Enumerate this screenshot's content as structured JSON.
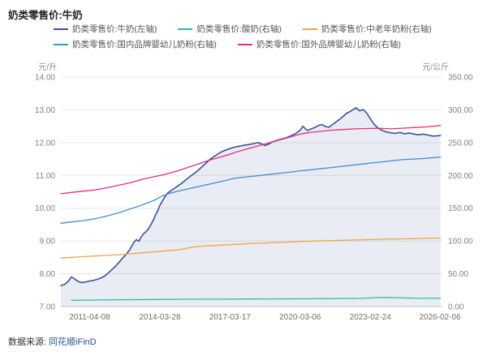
{
  "title": "奶类零售价:牛奶",
  "source": {
    "prefix": "数据来源:",
    "brand": "同花顺iFinD"
  },
  "chart_data": {
    "type": "line",
    "title": "奶类零售价:牛奶",
    "grid": "horizontal",
    "legend_position": "top",
    "legend_rows": [
      [
        0,
        1,
        2
      ],
      [
        3,
        4
      ]
    ],
    "x_domain": [
      2010.05,
      2026.2
    ],
    "x_ticks": [
      {
        "x": 2011.27,
        "label": "2011-04-08"
      },
      {
        "x": 2014.24,
        "label": "2014-03-28"
      },
      {
        "x": 2017.21,
        "label": "2017-03-17"
      },
      {
        "x": 2020.18,
        "label": "2020-03-06"
      },
      {
        "x": 2023.15,
        "label": "2023-02-24"
      },
      {
        "x": 2026.1,
        "label": "2026-02-06"
      }
    ],
    "left_axis": {
      "unit": "元/升",
      "min": 7,
      "max": 14,
      "ticks": [
        {
          "v": 7,
          "label": "7.00"
        },
        {
          "v": 8,
          "label": "8.00"
        },
        {
          "v": 9,
          "label": "9.00"
        },
        {
          "v": 10,
          "label": "10.00"
        },
        {
          "v": 11,
          "label": "11.00"
        },
        {
          "v": 12,
          "label": "12.00"
        },
        {
          "v": 13,
          "label": "13.00"
        },
        {
          "v": 14,
          "label": "14.00"
        }
      ]
    },
    "right_axis": {
      "unit": "元/公斤",
      "min": 0,
      "max": 350,
      "ticks": [
        {
          "v": 0,
          "label": "0.00"
        },
        {
          "v": 50,
          "label": "50.00"
        },
        {
          "v": 100,
          "label": "100.00"
        },
        {
          "v": 150,
          "label": "150.00"
        },
        {
          "v": 200,
          "label": "200.00"
        },
        {
          "v": 250,
          "label": "250.00"
        },
        {
          "v": 300,
          "label": "300.00"
        },
        {
          "v": 350,
          "label": "350.00"
        }
      ]
    },
    "colors": {
      "grid": "#e8e8e8",
      "axis_line": "#c9c9c9",
      "tick_label": "#808080"
    },
    "series": [
      {
        "name": "奶类零售价:牛奶(左轴)",
        "color": "#3b5396",
        "axis": "left",
        "width": 1.6,
        "fill": "rgba(76,100,164,0.12)",
        "points": [
          [
            2010.05,
            7.64
          ],
          [
            2010.2,
            7.67
          ],
          [
            2010.35,
            7.76
          ],
          [
            2010.5,
            7.9
          ],
          [
            2010.65,
            7.83
          ],
          [
            2010.8,
            7.76
          ],
          [
            2010.95,
            7.73
          ],
          [
            2011.1,
            7.75
          ],
          [
            2011.27,
            7.78
          ],
          [
            2011.45,
            7.8
          ],
          [
            2011.6,
            7.83
          ],
          [
            2011.75,
            7.87
          ],
          [
            2011.9,
            7.93
          ],
          [
            2012.05,
            8.02
          ],
          [
            2012.2,
            8.12
          ],
          [
            2012.35,
            8.22
          ],
          [
            2012.5,
            8.34
          ],
          [
            2012.65,
            8.47
          ],
          [
            2012.8,
            8.58
          ],
          [
            2012.95,
            8.72
          ],
          [
            2013.05,
            8.84
          ],
          [
            2013.15,
            8.97
          ],
          [
            2013.25,
            9.04
          ],
          [
            2013.35,
            8.99
          ],
          [
            2013.45,
            9.12
          ],
          [
            2013.55,
            9.22
          ],
          [
            2013.65,
            9.28
          ],
          [
            2013.75,
            9.36
          ],
          [
            2013.85,
            9.48
          ],
          [
            2013.95,
            9.62
          ],
          [
            2014.05,
            9.78
          ],
          [
            2014.15,
            9.92
          ],
          [
            2014.24,
            10.08
          ],
          [
            2014.35,
            10.22
          ],
          [
            2014.45,
            10.34
          ],
          [
            2014.55,
            10.45
          ],
          [
            2014.7,
            10.53
          ],
          [
            2014.85,
            10.6
          ],
          [
            2015.0,
            10.68
          ],
          [
            2015.15,
            10.75
          ],
          [
            2015.3,
            10.84
          ],
          [
            2015.45,
            10.93
          ],
          [
            2015.6,
            11.01
          ],
          [
            2015.75,
            11.09
          ],
          [
            2015.9,
            11.18
          ],
          [
            2016.05,
            11.28
          ],
          [
            2016.2,
            11.38
          ],
          [
            2016.35,
            11.48
          ],
          [
            2016.5,
            11.56
          ],
          [
            2016.65,
            11.63
          ],
          [
            2016.8,
            11.7
          ],
          [
            2016.95,
            11.75
          ],
          [
            2017.1,
            11.79
          ],
          [
            2017.21,
            11.82
          ],
          [
            2017.4,
            11.86
          ],
          [
            2017.6,
            11.89
          ],
          [
            2017.8,
            11.92
          ],
          [
            2018.0,
            11.94
          ],
          [
            2018.2,
            11.97
          ],
          [
            2018.4,
            12.0
          ],
          [
            2018.55,
            11.96
          ],
          [
            2018.7,
            11.91
          ],
          [
            2018.85,
            11.96
          ],
          [
            2019.0,
            12.02
          ],
          [
            2019.2,
            12.07
          ],
          [
            2019.4,
            12.11
          ],
          [
            2019.6,
            12.15
          ],
          [
            2019.8,
            12.21
          ],
          [
            2020.0,
            12.28
          ],
          [
            2020.18,
            12.38
          ],
          [
            2020.3,
            12.5
          ],
          [
            2020.4,
            12.42
          ],
          [
            2020.5,
            12.37
          ],
          [
            2020.65,
            12.42
          ],
          [
            2020.8,
            12.46
          ],
          [
            2020.95,
            12.52
          ],
          [
            2021.1,
            12.55
          ],
          [
            2021.25,
            12.49
          ],
          [
            2021.4,
            12.47
          ],
          [
            2021.55,
            12.55
          ],
          [
            2021.7,
            12.63
          ],
          [
            2021.85,
            12.71
          ],
          [
            2022.0,
            12.8
          ],
          [
            2022.15,
            12.9
          ],
          [
            2022.3,
            12.95
          ],
          [
            2022.45,
            13.02
          ],
          [
            2022.55,
            13.06
          ],
          [
            2022.7,
            12.97
          ],
          [
            2022.85,
            13.01
          ],
          [
            2023.0,
            12.9
          ],
          [
            2023.15,
            12.73
          ],
          [
            2023.3,
            12.57
          ],
          [
            2023.45,
            12.46
          ],
          [
            2023.6,
            12.39
          ],
          [
            2023.8,
            12.33
          ],
          [
            2024.0,
            12.3
          ],
          [
            2024.2,
            12.28
          ],
          [
            2024.4,
            12.31
          ],
          [
            2024.6,
            12.27
          ],
          [
            2024.8,
            12.29
          ],
          [
            2025.0,
            12.26
          ],
          [
            2025.2,
            12.24
          ],
          [
            2025.4,
            12.26
          ],
          [
            2025.6,
            12.23
          ],
          [
            2025.8,
            12.2
          ],
          [
            2026.0,
            12.21
          ],
          [
            2026.12,
            12.22
          ]
        ]
      },
      {
        "name": "奶类零售价:酸奶(右轴)",
        "color": "#27bfa5",
        "axis": "right",
        "width": 1.3,
        "points": [
          [
            2010.5,
            9.5
          ],
          [
            2011,
            9.8
          ],
          [
            2012,
            10.2
          ],
          [
            2013,
            10.5
          ],
          [
            2014,
            10.8
          ],
          [
            2015,
            11.0
          ],
          [
            2016,
            11.2
          ],
          [
            2017,
            11.3
          ],
          [
            2018,
            11.5
          ],
          [
            2019,
            11.6
          ],
          [
            2020,
            11.8
          ],
          [
            2021,
            12.0
          ],
          [
            2022,
            12.2
          ],
          [
            2022.8,
            12.5
          ],
          [
            2023.3,
            13.5
          ],
          [
            2023.8,
            14.0
          ],
          [
            2024.3,
            13.5
          ],
          [
            2025,
            12.8
          ],
          [
            2026.12,
            12.5
          ]
        ]
      },
      {
        "name": "奶类零售价:中老年奶粉(右轴)",
        "color": "#f5a340",
        "axis": "right",
        "width": 1.3,
        "points": [
          [
            2010.05,
            74
          ],
          [
            2010.5,
            75
          ],
          [
            2011,
            76
          ],
          [
            2011.5,
            77
          ],
          [
            2012,
            78
          ],
          [
            2012.5,
            79
          ],
          [
            2013,
            80.5
          ],
          [
            2013.5,
            82
          ],
          [
            2014,
            83.5
          ],
          [
            2014.5,
            85
          ],
          [
            2015,
            86.5
          ],
          [
            2015.3,
            88
          ],
          [
            2015.6,
            90.5
          ],
          [
            2016,
            92
          ],
          [
            2016.5,
            93
          ],
          [
            2017,
            94
          ],
          [
            2017.5,
            95
          ],
          [
            2018,
            96
          ],
          [
            2018.5,
            96.5
          ],
          [
            2019,
            97.5
          ],
          [
            2019.5,
            98
          ],
          [
            2020,
            99
          ],
          [
            2020.5,
            99.5
          ],
          [
            2021,
            100
          ],
          [
            2021.5,
            100.5
          ],
          [
            2022,
            101
          ],
          [
            2022.5,
            101.5
          ],
          [
            2023,
            102
          ],
          [
            2023.5,
            102.5
          ],
          [
            2024,
            103
          ],
          [
            2024.5,
            103.2
          ],
          [
            2025,
            103.5
          ],
          [
            2025.5,
            104
          ],
          [
            2026.12,
            104.5
          ]
        ]
      },
      {
        "name": "奶类零售价:国内品牌婴幼儿奶粉(右轴)",
        "color": "#3f8ed0",
        "axis": "right",
        "width": 1.3,
        "points": [
          [
            2010.05,
            127
          ],
          [
            2010.5,
            129
          ],
          [
            2011,
            131
          ],
          [
            2011.5,
            134
          ],
          [
            2012,
            138
          ],
          [
            2012.5,
            143
          ],
          [
            2013,
            149
          ],
          [
            2013.5,
            155
          ],
          [
            2014,
            162
          ],
          [
            2014.3,
            168
          ],
          [
            2014.6,
            172
          ],
          [
            2015,
            176
          ],
          [
            2015.5,
            180
          ],
          [
            2016,
            184
          ],
          [
            2016.5,
            188
          ],
          [
            2017,
            192
          ],
          [
            2017.2,
            194
          ],
          [
            2017.5,
            196
          ],
          [
            2018,
            198
          ],
          [
            2018.5,
            200
          ],
          [
            2019,
            202
          ],
          [
            2019.5,
            204
          ],
          [
            2020,
            206
          ],
          [
            2020.2,
            207
          ],
          [
            2020.5,
            208
          ],
          [
            2021,
            210
          ],
          [
            2021.5,
            212
          ],
          [
            2022,
            214
          ],
          [
            2022.5,
            216
          ],
          [
            2023,
            218
          ],
          [
            2023.2,
            219
          ],
          [
            2023.5,
            220
          ],
          [
            2024,
            222
          ],
          [
            2024.5,
            224
          ],
          [
            2025,
            225
          ],
          [
            2025.5,
            226
          ],
          [
            2026.12,
            228
          ]
        ]
      },
      {
        "name": "奶类零售价:国外品牌婴幼儿奶粉(右轴)",
        "color": "#ea2c7c",
        "axis": "right",
        "width": 1.3,
        "points": [
          [
            2010.05,
            172
          ],
          [
            2010.5,
            174
          ],
          [
            2011,
            176
          ],
          [
            2011.5,
            178
          ],
          [
            2012,
            181
          ],
          [
            2012.5,
            185
          ],
          [
            2013,
            189
          ],
          [
            2013.5,
            194
          ],
          [
            2014,
            198
          ],
          [
            2014.5,
            202
          ],
          [
            2015,
            207
          ],
          [
            2015.5,
            213
          ],
          [
            2016,
            219
          ],
          [
            2016.5,
            225
          ],
          [
            2017,
            230
          ],
          [
            2017.2,
            232
          ],
          [
            2017.5,
            236
          ],
          [
            2018,
            241
          ],
          [
            2018.5,
            246
          ],
          [
            2019,
            251
          ],
          [
            2019.5,
            256
          ],
          [
            2020,
            261
          ],
          [
            2020.2,
            263
          ],
          [
            2020.5,
            265
          ],
          [
            2021,
            267
          ],
          [
            2021.5,
            269
          ],
          [
            2022,
            270
          ],
          [
            2022.5,
            271
          ],
          [
            2023,
            271.5
          ],
          [
            2023.5,
            272
          ],
          [
            2024,
            271
          ],
          [
            2024.5,
            272
          ],
          [
            2025,
            273
          ],
          [
            2025.5,
            274
          ],
          [
            2026.12,
            276
          ]
        ]
      }
    ]
  }
}
